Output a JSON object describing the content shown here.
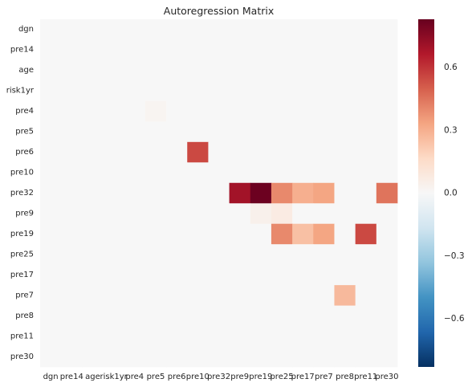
{
  "chart_data": {
    "type": "heatmap",
    "title": "Autoregression Matrix",
    "rows": [
      "dgn",
      "pre14",
      "age",
      "risk1yr",
      "pre4",
      "pre5",
      "pre6",
      "pre10",
      "pre32",
      "pre9",
      "pre19",
      "pre25",
      "pre17",
      "pre7",
      "pre8",
      "pre11",
      "pre30"
    ],
    "columns": [
      "dgn",
      "pre14",
      "age",
      "risk1yr",
      "pre4",
      "pre5",
      "pre6",
      "pre10",
      "pre32",
      "pre9",
      "pre19",
      "pre25",
      "pre17",
      "pre7",
      "pre8",
      "pre11",
      "pre30"
    ],
    "values": [
      [
        0,
        0,
        0,
        0,
        0,
        0,
        0,
        0,
        0,
        0,
        0,
        0,
        0,
        0,
        0,
        0,
        0
      ],
      [
        0,
        0,
        0,
        0,
        0,
        0,
        0,
        0,
        0,
        0,
        0,
        0,
        0,
        0,
        0,
        0,
        0
      ],
      [
        0,
        0,
        0,
        0,
        0,
        0,
        0,
        0,
        0,
        0,
        0,
        0,
        0,
        0,
        0,
        0,
        0
      ],
      [
        0,
        0,
        0,
        0,
        0,
        0,
        0,
        0,
        0,
        0,
        0,
        0,
        0,
        0,
        0,
        0,
        0
      ],
      [
        0,
        0,
        0,
        0,
        0,
        0.02,
        0,
        0,
        0,
        0,
        0,
        0,
        0,
        0,
        0,
        0,
        0
      ],
      [
        0,
        0,
        0,
        0,
        0,
        0,
        0,
        0,
        0,
        0,
        0,
        0,
        0,
        0,
        0,
        0,
        0
      ],
      [
        0,
        0,
        0,
        0,
        0,
        0,
        0,
        0.55,
        0,
        0,
        0,
        0,
        0,
        0,
        0,
        0,
        0
      ],
      [
        0,
        0,
        0,
        0,
        0,
        0,
        0,
        0,
        0,
        0,
        0,
        0,
        0,
        0,
        0,
        0,
        0
      ],
      [
        0,
        0,
        0,
        0,
        0,
        0,
        0,
        0,
        0,
        0.7,
        0.82,
        0.4,
        0.3,
        0.33,
        0,
        0,
        0.45
      ],
      [
        0,
        0,
        0,
        0,
        0,
        0,
        0,
        0,
        0,
        0,
        0.04,
        0.07,
        0,
        0,
        0,
        0,
        0
      ],
      [
        0,
        0,
        0,
        0,
        0,
        0,
        0,
        0,
        0,
        0,
        0,
        0.4,
        0.25,
        0.33,
        0,
        0.55,
        0
      ],
      [
        0,
        0,
        0,
        0,
        0,
        0,
        0,
        0,
        0,
        0,
        0,
        0,
        0,
        0,
        0,
        0,
        0
      ],
      [
        0,
        0,
        0,
        0,
        0,
        0,
        0,
        0,
        0,
        0,
        0,
        0,
        0,
        0,
        0,
        0,
        0
      ],
      [
        0,
        0,
        0,
        0,
        0,
        0,
        0,
        0,
        0,
        0,
        0,
        0,
        0,
        0,
        0.27,
        0,
        0
      ],
      [
        0,
        0,
        0,
        0,
        0,
        0,
        0,
        0,
        0,
        0,
        0,
        0,
        0,
        0,
        0,
        0,
        0
      ],
      [
        0,
        0,
        0,
        0,
        0,
        0,
        0,
        0,
        0,
        0,
        0,
        0,
        0,
        0,
        0,
        0,
        0
      ],
      [
        0,
        0,
        0,
        0,
        0,
        0,
        0,
        0,
        0,
        0,
        0,
        0,
        0,
        0,
        0,
        0,
        0
      ]
    ],
    "color_range": [
      -0.83,
      0.83
    ],
    "colormap": "RdBu_r",
    "colorbar_ticks": [
      0.6,
      0.3,
      0.0,
      -0.3,
      -0.6
    ],
    "colorbar_tick_labels": [
      "0.6",
      "0.3",
      "0.0",
      "−0.3",
      "−0.6"
    ],
    "grid": false
  }
}
